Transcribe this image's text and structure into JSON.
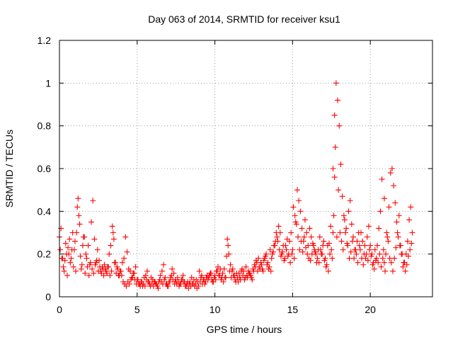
{
  "chart_data": {
    "type": "scatter",
    "title": "Day 063 of 2014, SRMTID for receiver ksu1",
    "xlabel": "GPS time / hours",
    "ylabel": "SRMTID / TECUs",
    "xlim": [
      0,
      24
    ],
    "ylim": [
      0,
      1.2
    ],
    "xticks": [
      0,
      5,
      10,
      15,
      20
    ],
    "yticks": [
      0,
      0.2,
      0.4,
      0.6,
      0.8,
      1,
      1.2
    ],
    "xtick_labels": [
      "0",
      "5",
      "10",
      "15",
      "20"
    ],
    "ytick_labels": [
      "0",
      "0.2",
      "0.4",
      "0.6",
      "0.8",
      "1",
      "1.2"
    ],
    "grid": true,
    "marker": "+",
    "color": "#ff0000",
    "series": [
      {
        "name": "ksu1",
        "x": [
          0.0,
          0.1,
          0.2,
          0.3,
          0.4,
          0.5,
          0.6,
          0.7,
          0.8,
          0.9,
          1.0,
          1.1,
          1.15,
          1.2,
          1.25,
          1.3,
          1.4,
          1.5,
          1.6,
          1.7,
          1.8,
          1.9,
          2.0,
          2.1,
          2.2,
          2.3,
          2.4,
          2.5,
          2.6,
          2.7,
          2.8,
          2.9,
          3.0,
          3.1,
          3.2,
          3.3,
          3.4,
          3.45,
          3.5,
          3.6,
          3.7,
          3.8,
          3.9,
          4.0,
          4.1,
          4.2,
          4.3,
          4.4,
          4.5,
          4.6,
          4.7,
          4.8,
          4.9,
          5.0,
          5.1,
          5.2,
          5.3,
          5.4,
          5.5,
          5.6,
          5.7,
          5.8,
          5.9,
          6.0,
          6.1,
          6.2,
          6.3,
          6.4,
          6.5,
          6.6,
          6.7,
          6.8,
          6.9,
          7.0,
          7.1,
          7.2,
          7.3,
          7.4,
          7.5,
          7.6,
          7.7,
          7.8,
          7.9,
          8.0,
          8.1,
          8.2,
          8.3,
          8.4,
          8.5,
          8.6,
          8.7,
          8.8,
          8.9,
          9.0,
          9.1,
          9.2,
          9.3,
          9.4,
          9.5,
          9.6,
          9.7,
          9.8,
          9.9,
          10.0,
          10.1,
          10.2,
          10.3,
          10.4,
          10.5,
          10.6,
          10.7,
          10.8,
          10.9,
          11.0,
          11.1,
          11.2,
          11.3,
          11.4,
          11.5,
          11.6,
          11.7,
          11.8,
          11.9,
          12.0,
          12.1,
          12.2,
          12.3,
          12.4,
          12.5,
          12.6,
          12.7,
          12.8,
          12.9,
          13.0,
          13.1,
          13.2,
          13.3,
          13.4,
          13.5,
          13.6,
          13.7,
          13.8,
          13.9,
          14.0,
          14.1,
          14.2,
          14.3,
          14.4,
          14.5,
          14.6,
          14.7,
          14.8,
          14.9,
          15.0,
          15.1,
          15.2,
          15.3,
          15.4,
          15.5,
          15.6,
          15.7,
          15.8,
          15.9,
          16.0,
          16.1,
          16.2,
          16.3,
          16.4,
          16.5,
          16.6,
          16.7,
          16.8,
          16.9,
          17.0,
          17.1,
          17.2,
          17.3,
          17.4,
          17.5,
          17.55,
          17.6,
          17.65,
          17.7,
          17.75,
          17.8,
          17.9,
          18.0,
          18.1,
          18.2,
          18.3,
          18.4,
          18.5,
          18.6,
          18.7,
          18.8,
          18.9,
          19.0,
          19.1,
          19.2,
          19.3,
          19.4,
          19.5,
          19.6,
          19.7,
          19.8,
          19.9,
          20.0,
          20.1,
          20.2,
          20.3,
          20.4,
          20.5,
          20.6,
          20.7,
          20.8,
          20.85,
          20.9,
          20.95,
          21.0,
          21.1,
          21.2,
          21.3,
          21.4,
          21.5,
          21.6,
          21.7,
          21.8,
          21.9,
          22.0,
          22.1,
          22.2,
          22.3,
          22.4,
          22.5,
          22.6,
          22.7,
          0.05,
          0.15,
          0.25,
          0.35,
          0.45,
          0.55,
          0.65,
          0.75,
          0.85,
          0.95,
          1.05,
          1.35,
          1.45,
          1.55,
          1.65,
          1.75,
          1.85,
          1.95,
          2.05,
          2.15,
          2.25,
          2.35,
          2.45,
          2.55,
          2.65,
          2.75,
          2.85,
          2.95,
          3.05,
          3.15,
          3.25,
          3.35,
          3.55,
          3.65,
          3.75,
          3.85,
          3.95,
          4.05,
          4.15,
          4.25,
          4.35,
          4.45,
          4.55,
          4.65,
          4.75,
          4.85,
          4.95,
          5.05,
          5.15,
          5.25,
          5.35,
          5.45,
          5.55,
          5.65,
          5.75,
          5.85,
          5.95,
          6.05,
          6.15,
          6.25,
          6.35,
          6.45,
          6.55,
          6.65,
          6.75,
          6.85,
          6.95,
          7.05,
          7.15,
          7.25,
          7.35,
          7.45,
          7.55,
          7.65,
          7.75,
          7.85,
          7.95,
          8.05,
          8.15,
          8.25,
          8.35,
          8.45,
          8.55,
          8.65,
          8.75,
          8.85,
          8.95,
          9.05,
          9.15,
          9.25,
          9.35,
          9.45,
          9.55,
          9.65,
          9.75,
          9.85,
          9.95,
          10.05,
          10.15,
          10.25,
          10.35,
          10.45,
          10.55,
          10.65,
          10.75,
          10.85,
          10.95,
          11.05,
          11.15,
          11.25,
          11.35,
          11.45,
          11.55,
          11.65,
          11.75,
          11.85,
          11.95,
          12.05,
          12.15,
          12.25,
          12.35,
          12.45,
          12.55,
          12.65,
          12.75,
          12.85,
          12.95,
          13.05,
          13.15,
          13.25,
          13.35,
          13.45,
          13.55,
          13.65,
          13.75,
          13.85,
          13.95,
          14.05,
          14.15,
          14.25,
          14.35,
          14.45,
          14.55,
          14.65,
          14.75,
          14.85,
          14.95,
          15.05,
          15.15,
          15.25,
          15.35,
          15.45,
          15.55,
          15.65,
          15.75,
          15.85,
          15.95,
          16.05,
          16.15,
          16.25,
          16.35,
          16.45,
          16.55,
          16.65,
          16.75,
          16.85,
          16.95,
          17.05,
          17.15,
          17.25,
          17.35,
          17.45,
          17.6,
          17.7,
          17.85,
          17.95,
          18.05,
          18.15,
          18.25,
          18.35,
          18.45,
          18.55,
          18.65,
          18.75,
          18.85,
          18.95,
          19.05,
          19.15,
          19.25,
          19.35,
          19.45,
          19.55,
          19.65,
          19.75,
          19.85,
          19.95,
          20.05,
          20.15,
          20.25,
          20.35,
          20.45,
          20.55,
          20.65,
          20.75,
          20.9,
          21.05,
          21.15,
          21.25,
          21.35,
          21.45,
          21.55,
          21.65,
          21.75,
          21.85,
          21.95,
          22.05,
          22.15,
          22.25,
          22.35,
          22.45,
          22.55,
          22.65
        ],
        "y": [
          0.28,
          0.32,
          0.18,
          0.12,
          0.25,
          0.1,
          0.2,
          0.16,
          0.22,
          0.14,
          0.26,
          0.3,
          0.42,
          0.46,
          0.38,
          0.34,
          0.13,
          0.24,
          0.28,
          0.2,
          0.14,
          0.1,
          0.16,
          0.13,
          0.11,
          0.15,
          0.17,
          0.12,
          0.14,
          0.11,
          0.13,
          0.15,
          0.12,
          0.14,
          0.2,
          0.24,
          0.33,
          0.3,
          0.27,
          0.16,
          0.14,
          0.1,
          0.12,
          0.1,
          0.07,
          0.06,
          0.05,
          0.07,
          0.06,
          0.08,
          0.09,
          0.11,
          0.14,
          0.08,
          0.06,
          0.05,
          0.07,
          0.06,
          0.05,
          0.08,
          0.07,
          0.06,
          0.09,
          0.08,
          0.07,
          0.06,
          0.05,
          0.07,
          0.1,
          0.12,
          0.15,
          0.09,
          0.06,
          0.05,
          0.07,
          0.1,
          0.08,
          0.06,
          0.07,
          0.09,
          0.05,
          0.06,
          0.08,
          0.07,
          0.05,
          0.06,
          0.04,
          0.07,
          0.09,
          0.06,
          0.05,
          0.08,
          0.07,
          0.12,
          0.09,
          0.06,
          0.08,
          0.07,
          0.1,
          0.09,
          0.11,
          0.08,
          0.07,
          0.1,
          0.12,
          0.14,
          0.1,
          0.08,
          0.11,
          0.13,
          0.09,
          0.27,
          0.2,
          0.15,
          0.12,
          0.1,
          0.08,
          0.11,
          0.07,
          0.09,
          0.12,
          0.1,
          0.08,
          0.14,
          0.09,
          0.11,
          0.1,
          0.08,
          0.12,
          0.14,
          0.16,
          0.18,
          0.13,
          0.15,
          0.12,
          0.18,
          0.2,
          0.16,
          0.14,
          0.12,
          0.2,
          0.24,
          0.26,
          0.28,
          0.33,
          0.3,
          0.2,
          0.24,
          0.18,
          0.22,
          0.19,
          0.26,
          0.3,
          0.22,
          0.18,
          0.35,
          0.5,
          0.45,
          0.4,
          0.32,
          0.26,
          0.36,
          0.3,
          0.24,
          0.32,
          0.28,
          0.25,
          0.22,
          0.2,
          0.18,
          0.16,
          0.22,
          0.2,
          0.26,
          0.18,
          0.15,
          0.12,
          0.2,
          0.22,
          0.18,
          0.3,
          0.38,
          0.56,
          0.7,
          1.0,
          0.92,
          0.8,
          0.62,
          0.47,
          0.38,
          0.3,
          0.25,
          0.4,
          0.45,
          0.34,
          0.28,
          0.22,
          0.2,
          0.16,
          0.24,
          0.3,
          0.26,
          0.2,
          0.18,
          0.28,
          0.33,
          0.24,
          0.2,
          0.16,
          0.22,
          0.18,
          0.16,
          0.2,
          0.14,
          0.18,
          0.22,
          0.16,
          0.12,
          0.2,
          0.28,
          0.42,
          0.58,
          0.6,
          0.52,
          0.44,
          0.35,
          0.28,
          0.24,
          0.2,
          0.14,
          0.16,
          0.2,
          0.26,
          0.36,
          0.42,
          0.3,
          0.22,
          0.18,
          0.14,
          0.17,
          0.2,
          0.23,
          0.27,
          0.18,
          0.3,
          0.22,
          0.12,
          0.19,
          0.15,
          0.28,
          0.11,
          0.18,
          0.24,
          0.15,
          0.35,
          0.45,
          0.27,
          0.16,
          0.22,
          0.17,
          0.12,
          0.14,
          0.1,
          0.13,
          0.11,
          0.14,
          0.1,
          0.12,
          0.16,
          0.11,
          0.13,
          0.1,
          0.12,
          0.16,
          0.18,
          0.28,
          0.21,
          0.13,
          0.12,
          0.09,
          0.11,
          0.08,
          0.06,
          0.08,
          0.06,
          0.07,
          0.05,
          0.09,
          0.1,
          0.12,
          0.07,
          0.05,
          0.06,
          0.05,
          0.07,
          0.06,
          0.04,
          0.08,
          0.07,
          0.06,
          0.08,
          0.06,
          0.05,
          0.07,
          0.09,
          0.13,
          0.11,
          0.08,
          0.06,
          0.07,
          0.06,
          0.08,
          0.1,
          0.07,
          0.05,
          0.07,
          0.06,
          0.05,
          0.06,
          0.08,
          0.06,
          0.04,
          0.05,
          0.07,
          0.1,
          0.08,
          0.06,
          0.09,
          0.08,
          0.1,
          0.11,
          0.07,
          0.09,
          0.08,
          0.12,
          0.1,
          0.13,
          0.09,
          0.07,
          0.09,
          0.19,
          0.24,
          0.12,
          0.09,
          0.13,
          0.1,
          0.07,
          0.09,
          0.11,
          0.08,
          0.13,
          0.12,
          0.09,
          0.1,
          0.12,
          0.11,
          0.09,
          0.13,
          0.15,
          0.17,
          0.12,
          0.14,
          0.16,
          0.13,
          0.17,
          0.19,
          0.15,
          0.13,
          0.22,
          0.18,
          0.21,
          0.24,
          0.3,
          0.26,
          0.22,
          0.19,
          0.21,
          0.17,
          0.24,
          0.27,
          0.2,
          0.16,
          0.2,
          0.42,
          0.38,
          0.34,
          0.28,
          0.22,
          0.26,
          0.21,
          0.28,
          0.23,
          0.2,
          0.18,
          0.17,
          0.2,
          0.24,
          0.21,
          0.16,
          0.22,
          0.28,
          0.2,
          0.24,
          0.17,
          0.14,
          0.24,
          0.25,
          0.33,
          0.6,
          0.85,
          0.28,
          0.5,
          0.3,
          0.26,
          0.22,
          0.36,
          0.32,
          0.24,
          0.18,
          0.21,
          0.26,
          0.18,
          0.22,
          0.26,
          0.3,
          0.22,
          0.18,
          0.15,
          0.24,
          0.2,
          0.17,
          0.22,
          0.19,
          0.15,
          0.13,
          0.17,
          0.24,
          0.32,
          0.4,
          0.55,
          0.46,
          0.3,
          0.26,
          0.18,
          0.16,
          0.12,
          0.18,
          0.23,
          0.3,
          0.38,
          0.24,
          0.2,
          0.16,
          0.12,
          0.15,
          0.19,
          0.22,
          0.25
        ]
      }
    ]
  }
}
